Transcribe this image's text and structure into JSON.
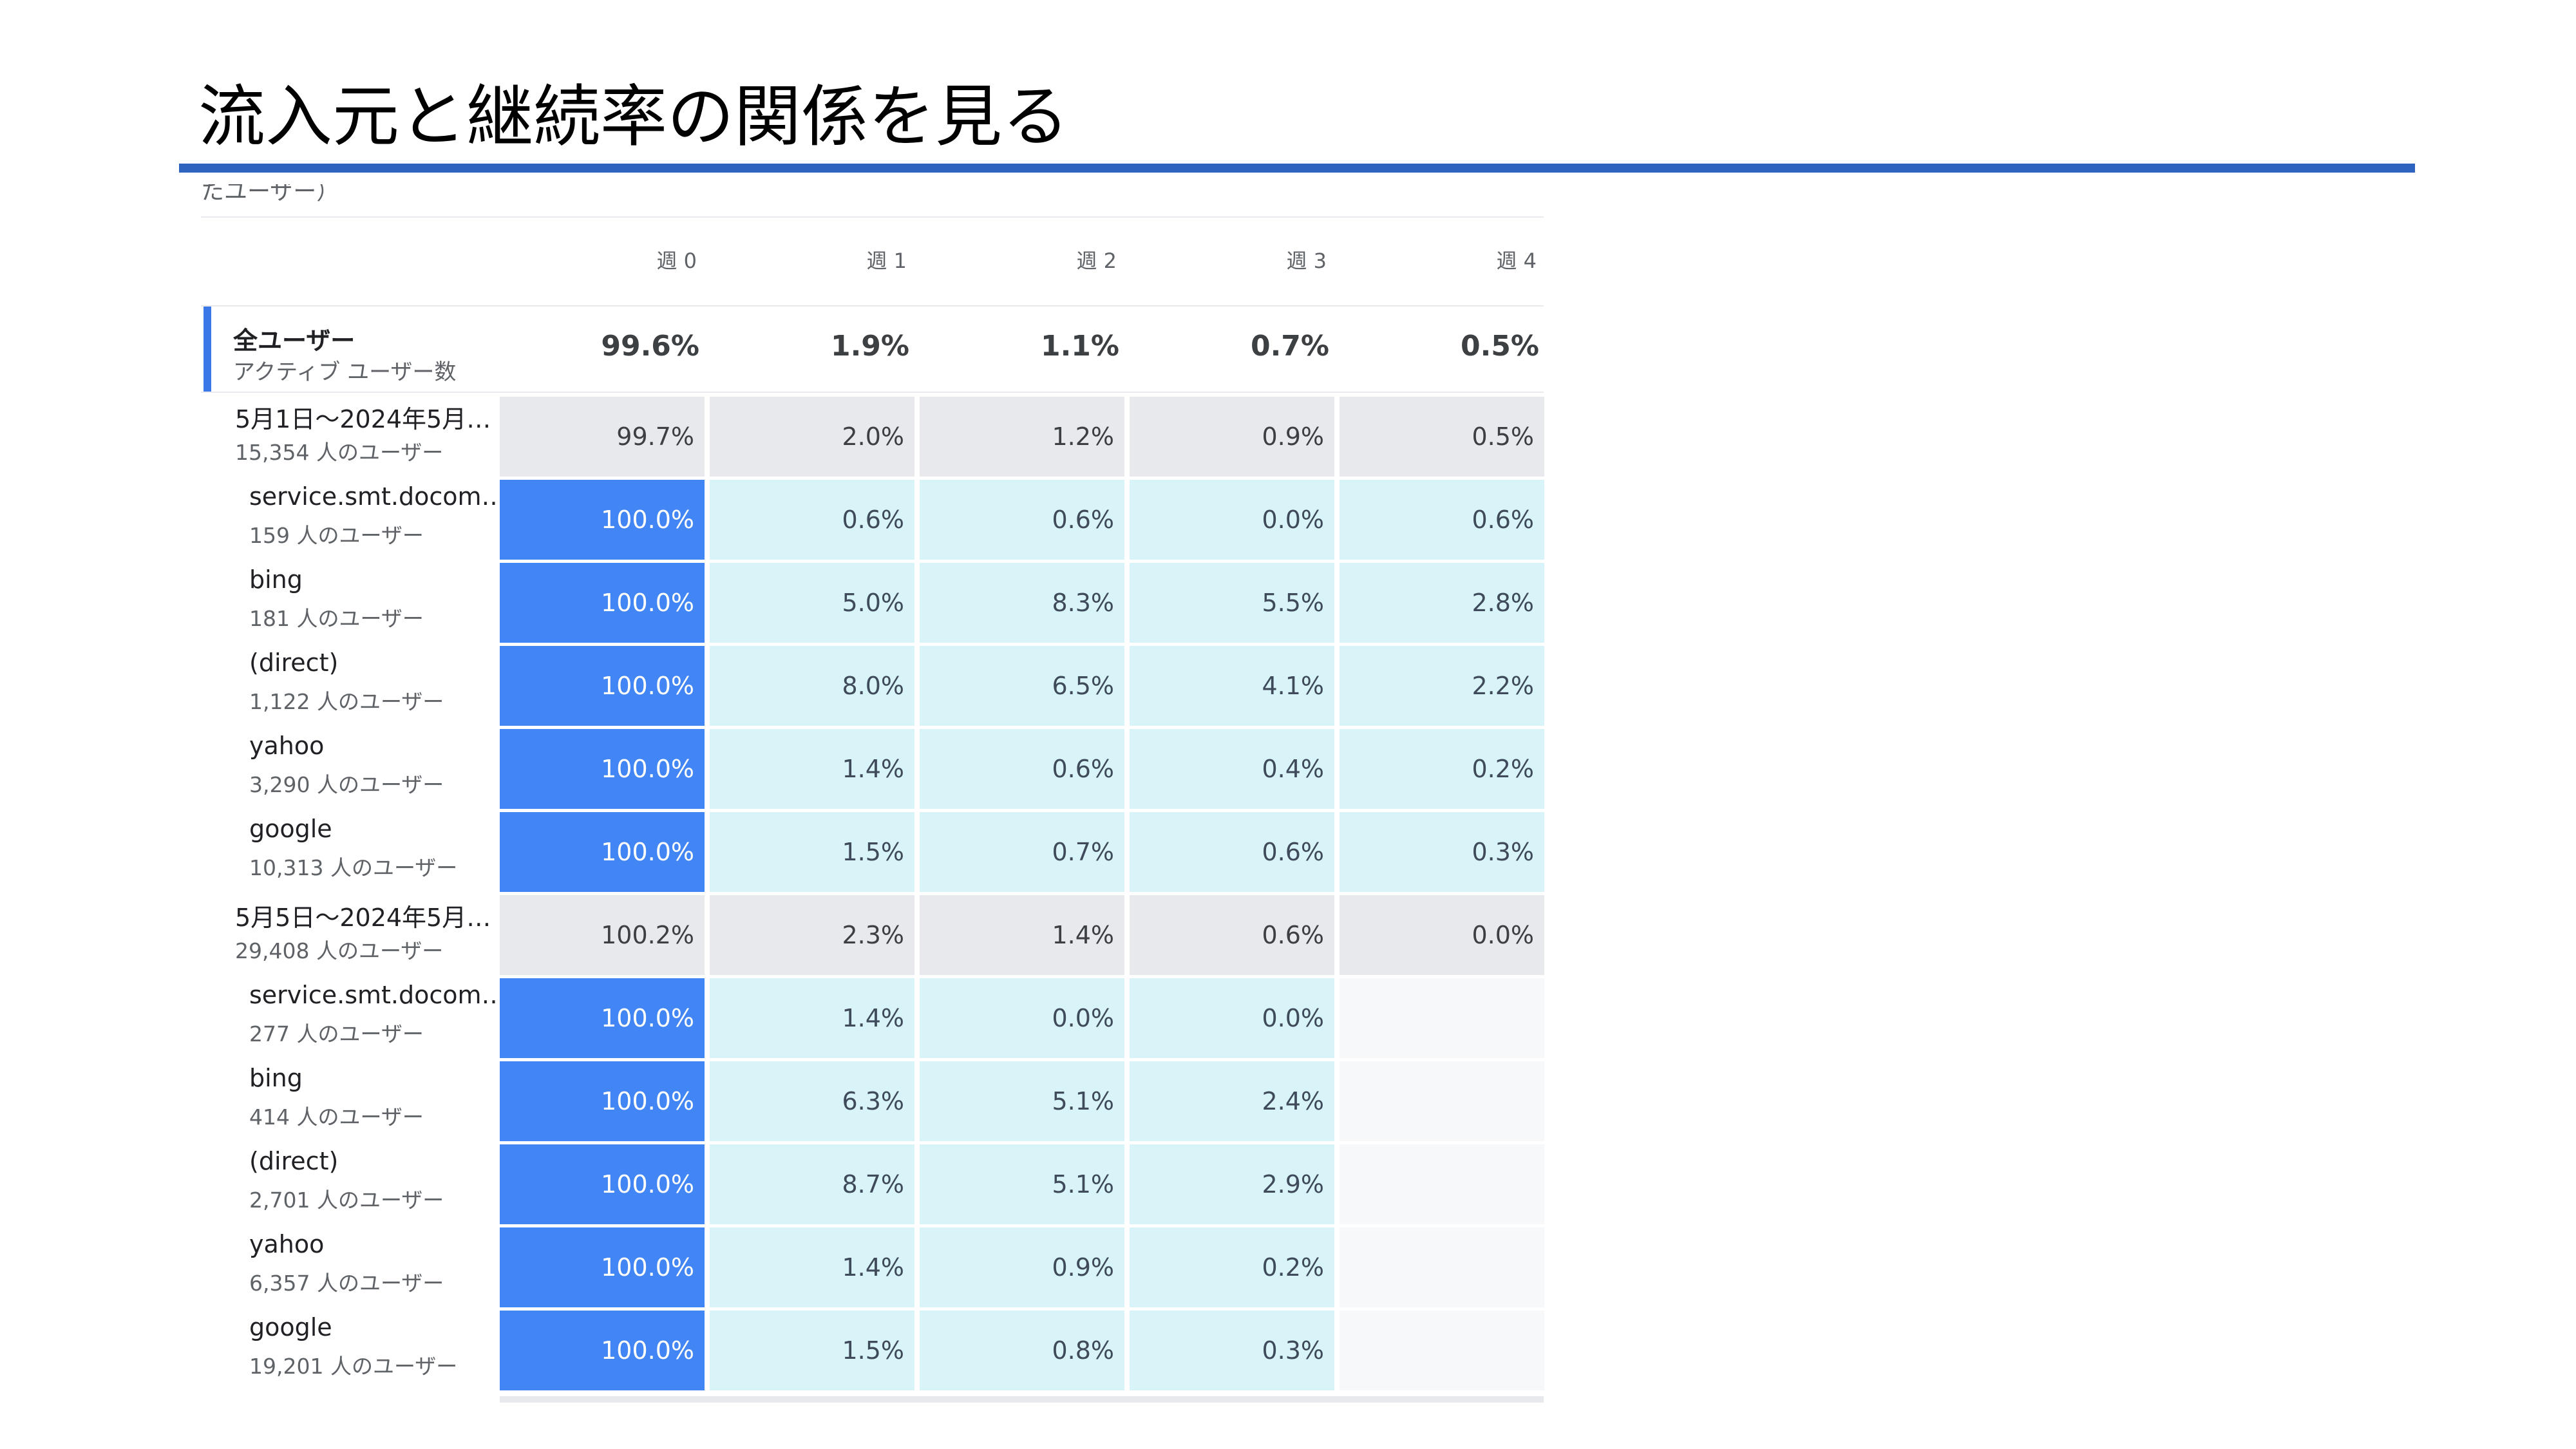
{
  "slide": {
    "title": "流入元と継続率の関係を見る",
    "clipped_label": "たユーザー）"
  },
  "table": {
    "columns": [
      "週 0",
      "週 1",
      "週 2",
      "週 3",
      "週 4"
    ],
    "all_users": {
      "label": "全ユーザー",
      "sublabel": "アクティブ ユーザー数",
      "values": [
        "99.6%",
        "1.9%",
        "1.1%",
        "0.7%",
        "0.5%"
      ]
    },
    "cohorts": [
      {
        "label": "5月1日～2024年5月…",
        "users": "15,354 人のユーザー",
        "values": [
          "99.7%",
          "2.0%",
          "1.2%",
          "0.9%",
          "0.5%"
        ],
        "sources": [
          {
            "name": "service.smt.docom…",
            "users": "159 人のユーザー",
            "values": [
              "100.0%",
              "0.6%",
              "0.6%",
              "0.0%",
              "0.6%"
            ]
          },
          {
            "name": "bing",
            "users": "181 人のユーザー",
            "values": [
              "100.0%",
              "5.0%",
              "8.3%",
              "5.5%",
              "2.8%"
            ]
          },
          {
            "name": "(direct)",
            "users": "1,122 人のユーザー",
            "values": [
              "100.0%",
              "8.0%",
              "6.5%",
              "4.1%",
              "2.2%"
            ]
          },
          {
            "name": "yahoo",
            "users": "3,290 人のユーザー",
            "values": [
              "100.0%",
              "1.4%",
              "0.6%",
              "0.4%",
              "0.2%"
            ]
          },
          {
            "name": "google",
            "users": "10,313 人のユーザー",
            "values": [
              "100.0%",
              "1.5%",
              "0.7%",
              "0.6%",
              "0.3%"
            ]
          }
        ]
      },
      {
        "label": "5月5日～2024年5月…",
        "users": "29,408 人のユーザー",
        "values": [
          "100.2%",
          "2.3%",
          "1.4%",
          "0.6%",
          "0.0%"
        ],
        "sources": [
          {
            "name": "service.smt.docom…",
            "users": "277 人のユーザー",
            "values": [
              "100.0%",
              "1.4%",
              "0.0%",
              "0.0%",
              ""
            ]
          },
          {
            "name": "bing",
            "users": "414 人のユーザー",
            "values": [
              "100.0%",
              "6.3%",
              "5.1%",
              "2.4%",
              ""
            ]
          },
          {
            "name": "(direct)",
            "users": "2,701 人のユーザー",
            "values": [
              "100.0%",
              "8.7%",
              "5.1%",
              "2.9%",
              ""
            ]
          },
          {
            "name": "yahoo",
            "users": "6,357 人のユーザー",
            "values": [
              "100.0%",
              "1.4%",
              "0.9%",
              "0.2%",
              ""
            ]
          },
          {
            "name": "google",
            "users": "19,201 人のユーザー",
            "values": [
              "100.0%",
              "1.5%",
              "0.8%",
              "0.3%",
              ""
            ]
          }
        ]
      }
    ]
  },
  "colors": {
    "title_rule": "#2e63bf",
    "week0_cell": "#4285f4",
    "retention_cell": "#d8f4f8",
    "cohort_row": "#e8e9ec",
    "empty_cell": "#f7f8f9"
  }
}
